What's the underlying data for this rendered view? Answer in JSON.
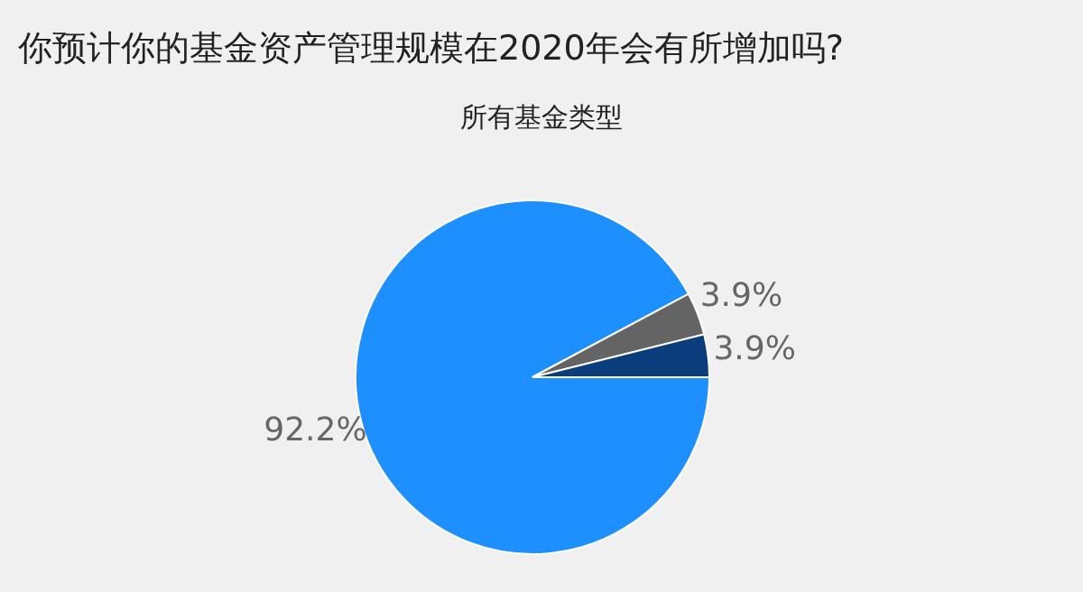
{
  "chart_data": {
    "type": "pie",
    "title": "你预计你的基金资产管理规模在2020年会有所增加吗?",
    "subtitle": "所有基金类型",
    "categories": [
      null,
      null,
      null
    ],
    "values": [
      92.2,
      3.9,
      3.9
    ],
    "colors": [
      "#1e8fff",
      "#646464",
      "#0b3c7c"
    ],
    "value_labels": [
      "92.2%",
      "3.9%",
      "3.9%"
    ]
  }
}
